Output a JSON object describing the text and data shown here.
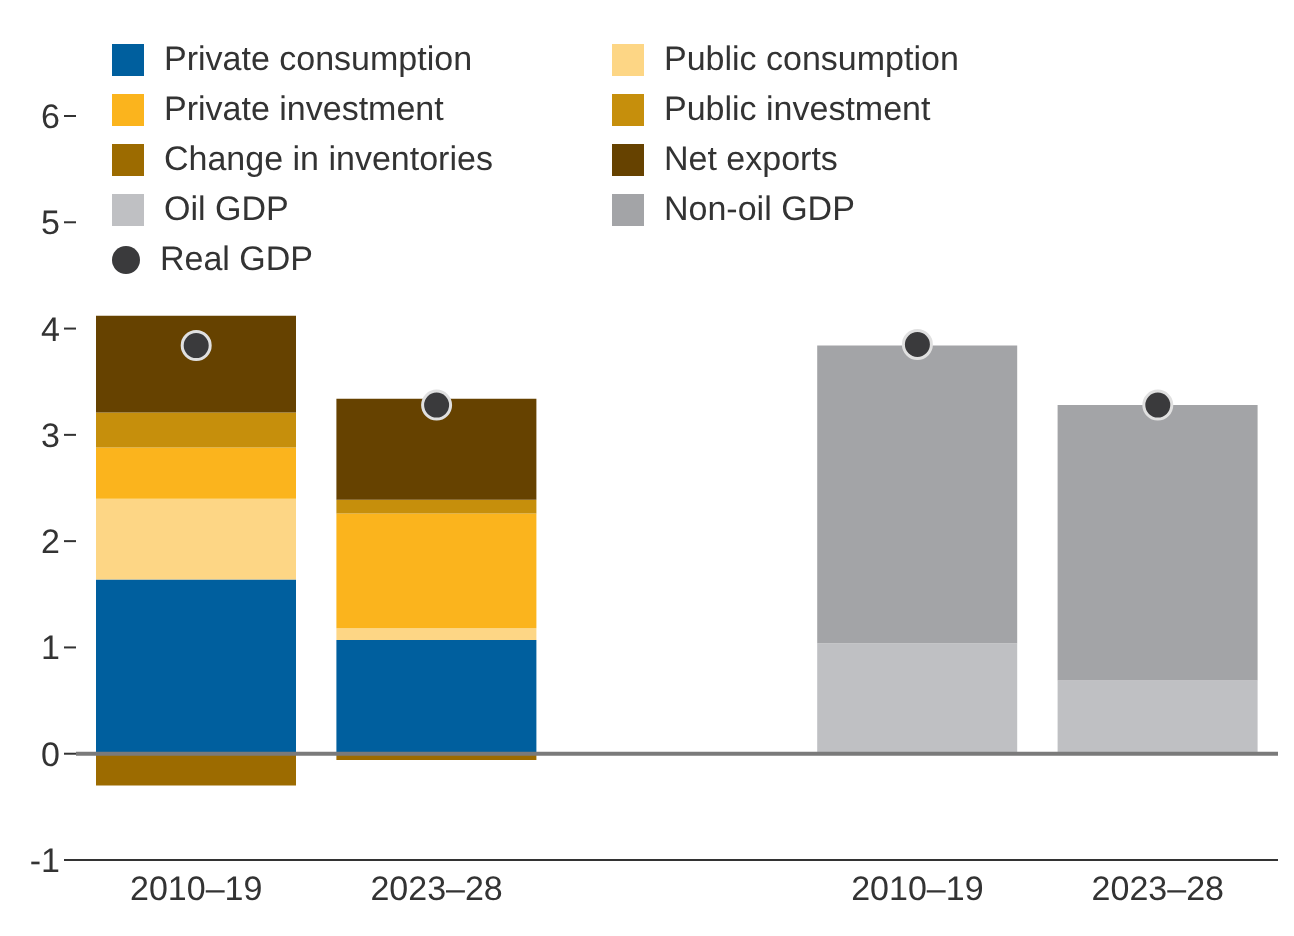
{
  "chart_data": {
    "type": "bar",
    "stacked": true,
    "categories": [
      "2010–19",
      "2023–28",
      null,
      "2010–19",
      "2023–28"
    ],
    "series": [
      {
        "name": "Private consumption",
        "color": "#005f9e",
        "values": [
          1.64,
          1.07,
          null,
          null,
          null
        ]
      },
      {
        "name": "Public consumption",
        "color": "#fdd685",
        "values": [
          0.76,
          0.11,
          null,
          null,
          null
        ]
      },
      {
        "name": "Private investment",
        "color": "#fbb41d",
        "values": [
          0.48,
          1.08,
          null,
          null,
          null
        ]
      },
      {
        "name": "Public investment",
        "color": "#c68f0c",
        "values": [
          0.33,
          0.13,
          null,
          null,
          null
        ]
      },
      {
        "name": "Change in inventories",
        "color": "#9c6b00",
        "values": [
          -0.3,
          -0.06,
          null,
          null,
          null
        ]
      },
      {
        "name": "Net exports",
        "color": "#664200",
        "values": [
          0.91,
          0.95,
          null,
          null,
          null
        ]
      },
      {
        "name": "Oil GDP",
        "color": "#bfc0c3",
        "values": [
          null,
          null,
          null,
          1.04,
          0.69
        ]
      },
      {
        "name": "Non-oil GDP",
        "color": "#a3a4a7",
        "values": [
          null,
          null,
          null,
          2.8,
          2.59
        ]
      },
      {
        "name": "Real GDP",
        "type": "scatter",
        "color": "#3a3a3c",
        "values": [
          3.84,
          3.28,
          null,
          3.85,
          3.28
        ]
      }
    ],
    "ylim": [
      -1,
      6
    ],
    "yticks": [
      -1,
      0,
      1,
      2,
      3,
      4,
      5,
      6
    ],
    "grid": false,
    "legend": "top left",
    "marker": "circle",
    "ref_lines": [
      {
        "axis": "y",
        "value": 0,
        "color": "#7a7a7a"
      }
    ]
  }
}
